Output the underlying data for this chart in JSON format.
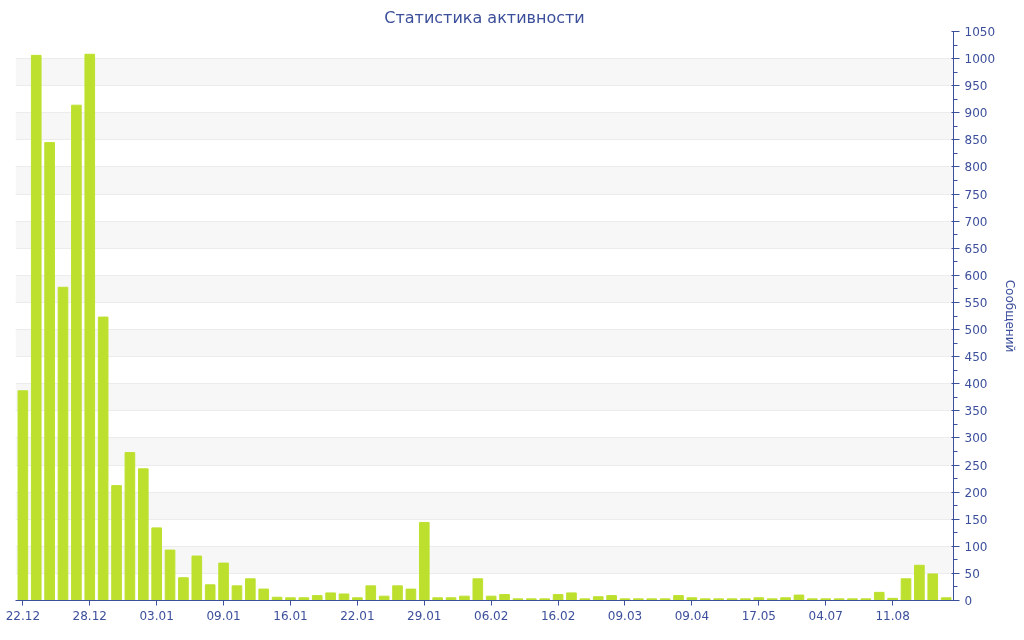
{
  "chart_data": {
    "type": "bar",
    "title": "Статистика активности",
    "ylabel": "Сообщений",
    "categories": [
      "22.12",
      null,
      null,
      null,
      null,
      "28.12",
      null,
      null,
      null,
      null,
      "03.01",
      null,
      null,
      null,
      null,
      "09.01",
      null,
      null,
      null,
      null,
      "16.01",
      null,
      null,
      null,
      null,
      "22.01",
      null,
      null,
      null,
      null,
      "29.01",
      null,
      null,
      null,
      null,
      "06.02",
      null,
      null,
      null,
      null,
      "16.02",
      null,
      null,
      null,
      null,
      "09.03",
      null,
      null,
      null,
      null,
      "09.04",
      null,
      null,
      null,
      null,
      "17.05",
      null,
      null,
      null,
      null,
      "04.07",
      null,
      null,
      null,
      null,
      "11.08",
      null,
      null,
      null,
      null
    ],
    "values": [
      387,
      1006,
      845,
      578,
      914,
      1008,
      523,
      212,
      273,
      243,
      134,
      93,
      42,
      82,
      29,
      69,
      27,
      40,
      21,
      6,
      5,
      5,
      9,
      14,
      12,
      5,
      27,
      8,
      27,
      21,
      144,
      5,
      5,
      8,
      40,
      8,
      11,
      3,
      3,
      3,
      11,
      14,
      3,
      7,
      9,
      3,
      3,
      3,
      3,
      9,
      5,
      3,
      3,
      3,
      3,
      5,
      3,
      5,
      10,
      3,
      3,
      3,
      3,
      3,
      15,
      4,
      40,
      65,
      49,
      5
    ],
    "color": "#bde02f",
    "ylim": [
      0,
      1050
    ],
    "yticks": [
      0,
      50,
      100,
      150,
      200,
      250,
      300,
      350,
      400,
      450,
      500,
      550,
      600,
      650,
      700,
      750,
      800,
      850,
      900,
      950,
      1000,
      1050
    ],
    "grid": "y"
  }
}
